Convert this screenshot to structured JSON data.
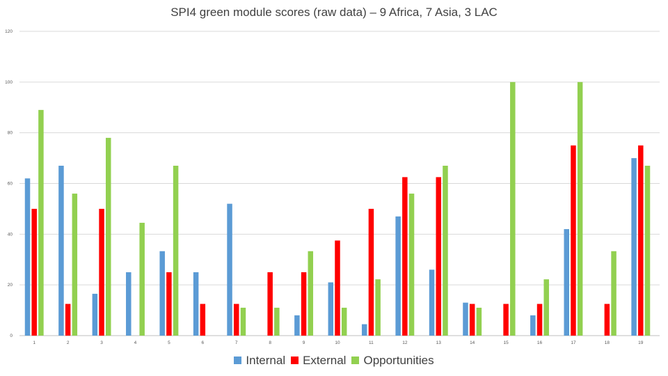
{
  "chart_data": {
    "type": "bar",
    "title": "SPI4 green module scores (raw data) – 9 Africa, 7 Asia, 3 LAC",
    "xlabel": "",
    "ylabel": "",
    "ylim": [
      0,
      120
    ],
    "yticks": [
      "0",
      "20",
      "40",
      "60",
      "80",
      "100",
      "120"
    ],
    "grid": true,
    "legend_position": "bottom",
    "categories": [
      "1",
      "2",
      "3",
      "4",
      "5",
      "6",
      "7",
      "8",
      "9",
      "10",
      "11",
      "12",
      "13",
      "14",
      "15",
      "16",
      "17",
      "18",
      "19"
    ],
    "series": [
      {
        "name": "Internal",
        "color": "#5b9bd5",
        "values": [
          62,
          67,
          16.5,
          25,
          33.3,
          25,
          52,
          0,
          8,
          21,
          4.5,
          47,
          26,
          13,
          0,
          8,
          42,
          0,
          70
        ]
      },
      {
        "name": "External",
        "color": "#ff0000",
        "values": [
          50,
          12.5,
          50,
          0,
          25,
          12.5,
          12.5,
          25,
          25,
          37.5,
          50,
          62.5,
          62.5,
          12.5,
          12.5,
          12.5,
          75,
          12.5,
          75
        ]
      },
      {
        "name": "Opportunities",
        "color": "#92d050",
        "values": [
          89,
          56,
          78,
          44.5,
          67,
          0,
          11,
          11,
          33.3,
          11,
          22.2,
          56,
          67,
          11,
          100,
          22.2,
          100,
          33.3,
          67
        ]
      }
    ]
  }
}
